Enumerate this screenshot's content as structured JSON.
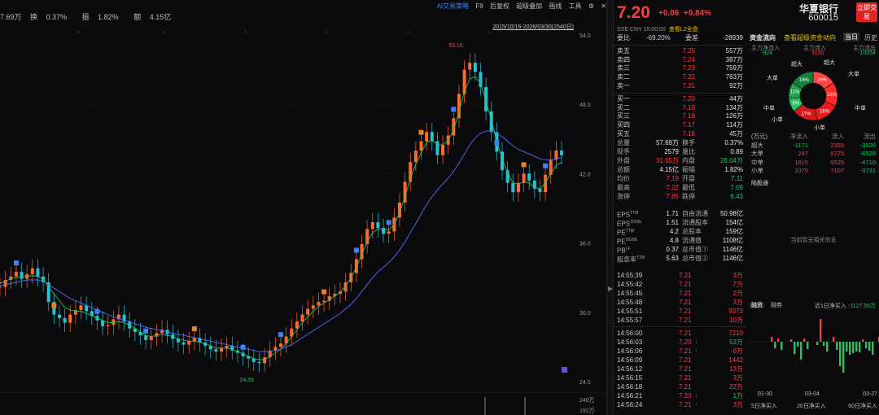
{
  "top": {
    "stats": [
      {
        "label": "7.69万",
        "value": ""
      },
      {
        "label": "换",
        "value": "0.37%"
      },
      {
        "label": "振",
        "value": "1.82%"
      },
      {
        "label": "额",
        "value": "4.15亿"
      }
    ],
    "tools": [
      "AI交易策略",
      "F9",
      "后复权",
      "超级叠加",
      "画线",
      "工具"
    ],
    "date_range": "2015/10/16-2026/03/30(2540日)"
  },
  "chart_data": {
    "type": "line",
    "title": "",
    "ylim": [
      24.0,
      54.0
    ],
    "y_ticks": [
      "54.0",
      "48.0",
      "42.0",
      "36.0",
      "30.0",
      "24.0"
    ],
    "y_ticks_values": [
      54.0,
      48.0,
      42.0,
      36.0,
      30.0,
      24.0
    ],
    "annotations": [
      {
        "label": "53.16",
        "value": 53.16
      },
      {
        "label": "24.35",
        "value": 24.35
      }
    ],
    "close_series": [
      32.2,
      32.8,
      33.1,
      33.5,
      32.9,
      33.3,
      33.8,
      33.1,
      32.6,
      30.9,
      29.8,
      29.5,
      29.1,
      29.8,
      30.2,
      30.6,
      30.1,
      29.7,
      29.3,
      28.8,
      28.9,
      29.4,
      29.8,
      29.2,
      28.6,
      28.3,
      28.0,
      27.6,
      27.9,
      28.2,
      28.5,
      28.1,
      27.7,
      27.4,
      27.2,
      27.5,
      27.8,
      27.4,
      27.1,
      26.8,
      26.6,
      26.9,
      27.1,
      26.7,
      26.5,
      26.2,
      26.0,
      25.7,
      25.6,
      26.1,
      26.7,
      27.0,
      27.3,
      27.9,
      28.6,
      29.2,
      29.8,
      30.3,
      30.6,
      30.9,
      31.0,
      31.4,
      31.6,
      31.8,
      32.6,
      33.4,
      34.6,
      35.9,
      37.2,
      37.8,
      37.3,
      36.8,
      37.0,
      38.2,
      39.5,
      41.3,
      43.0,
      44.0,
      44.8,
      45.6,
      44.8,
      43.6,
      44.5,
      45.3,
      46.8,
      48.9,
      51.0,
      51.6,
      50.8,
      49.5,
      47.4,
      45.6,
      43.9,
      42.3,
      41.2,
      40.4,
      41.2,
      42.0,
      41.4,
      40.7,
      40.4,
      41.9,
      43.2,
      44.0,
      43.6
    ],
    "ma_short": [
      32.5,
      32.7,
      32.9,
      33.0,
      33.1,
      33.1,
      33.2,
      33.1,
      32.9,
      32.2,
      31.6,
      31.0,
      30.4,
      30.2,
      30.1,
      30.1,
      29.9,
      29.7,
      29.5,
      29.3,
      29.1,
      29.1,
      29.2,
      29.1,
      28.9,
      28.6,
      28.3,
      28.0,
      27.9,
      28.0,
      28.1,
      28.0,
      27.9,
      27.7,
      27.6,
      27.5,
      27.5,
      27.4,
      27.3,
      27.1,
      26.9,
      26.9,
      26.9,
      26.8,
      26.6,
      26.4,
      26.2,
      26.0,
      25.9,
      25.9,
      26.2,
      26.5,
      26.8,
      27.3,
      27.9,
      28.5,
      29.1,
      29.6,
      30.1,
      30.5,
      30.8,
      31.1,
      31.4,
      31.7,
      32.3,
      33.0,
      33.9,
      35.0,
      36.1,
      36.9,
      37.2,
      37.2,
      37.1,
      37.6,
      38.6,
      40.0,
      41.6,
      42.8,
      43.8,
      44.7,
      44.9,
      44.5,
      44.5,
      44.9,
      45.8,
      47.3,
      49.1,
      50.2,
      50.4,
      49.8,
      48.3,
      46.6,
      44.8,
      43.3,
      42.1,
      41.2,
      41.1,
      41.3,
      41.2,
      40.8,
      40.7,
      41.2,
      42.0,
      42.7,
      43.0
    ],
    "ma_long": [
      32.3,
      32.4,
      32.5,
      32.6,
      32.7,
      32.8,
      32.8,
      32.8,
      32.7,
      32.4,
      32.1,
      31.8,
      31.5,
      31.2,
      31.0,
      30.8,
      30.6,
      30.4,
      30.2,
      30.0,
      29.8,
      29.6,
      29.5,
      29.3,
      29.2,
      29.0,
      28.9,
      28.7,
      28.6,
      28.5,
      28.4,
      28.3,
      28.2,
      28.1,
      28.0,
      27.9,
      27.8,
      27.7,
      27.6,
      27.5,
      27.4,
      27.3,
      27.2,
      27.1,
      27.0,
      26.9,
      26.8,
      26.7,
      26.6,
      26.6,
      26.6,
      26.7,
      26.8,
      27.0,
      27.2,
      27.5,
      27.8,
      28.1,
      28.4,
      28.7,
      29.0,
      29.3,
      29.6,
      29.9,
      30.3,
      30.7,
      31.2,
      31.8,
      32.4,
      33.0,
      33.5,
      33.9,
      34.3,
      34.8,
      35.4,
      36.1,
      36.9,
      37.7,
      38.5,
      39.3,
      40.0,
      40.6,
      41.1,
      41.6,
      42.2,
      42.9,
      43.7,
      44.5,
      45.1,
      45.5,
      45.7,
      45.7,
      45.5,
      45.2,
      44.8,
      44.4,
      44.1,
      43.9,
      43.7,
      43.5,
      43.3,
      43.2,
      43.2,
      43.3,
      43.4
    ],
    "volume_ticks": [
      "240万",
      "192万"
    ],
    "volume_ticks_values": [
      2400000,
      1920000
    ]
  },
  "quote": {
    "price": "7.20",
    "change": "+0.06",
    "change_pct": "+0.84%",
    "name": "华夏银行",
    "code": "600015",
    "trade_button": "立即交易",
    "sub": "SSE  CNY  15:00:00",
    "l2": "查看L2全盘"
  },
  "book": {
    "ratio": {
      "label": "委比",
      "value": "-69.20%",
      "diff_label": "委差",
      "diff": "-28939"
    },
    "asks": [
      {
        "label": "卖五",
        "price": "7.25",
        "vol": "557万"
      },
      {
        "label": "卖四",
        "price": "7.24",
        "vol": "387万"
      },
      {
        "label": "卖三",
        "price": "7.23",
        "vol": "759万"
      },
      {
        "label": "卖二",
        "price": "7.22",
        "vol": "763万"
      },
      {
        "label": "卖一",
        "price": "7.21",
        "vol": "92万"
      }
    ],
    "bids": [
      {
        "label": "买一",
        "price": "7.20",
        "vol": "44万"
      },
      {
        "label": "买二",
        "price": "7.19",
        "vol": "134万"
      },
      {
        "label": "买三",
        "price": "7.18",
        "vol": "126万"
      },
      {
        "label": "买四",
        "price": "7.17",
        "vol": "114万"
      },
      {
        "label": "买五",
        "price": "7.16",
        "vol": "45万"
      }
    ]
  },
  "stats": [
    {
      "k1": "总量",
      "v1": "57.69万",
      "c1": "white",
      "k2": "换手",
      "v2": "0.37%",
      "c2": "white"
    },
    {
      "k1": "现手",
      "v1": "2579",
      "c1": "white",
      "k2": "量比",
      "v2": "0.89",
      "c2": "white"
    },
    {
      "k1": "外盘",
      "v1": "31.65万",
      "c1": "red",
      "k2": "内盘",
      "v2": "26.04万",
      "c2": "green"
    },
    {
      "k1": "总额",
      "v1": "4.15亿",
      "c1": "white",
      "k2": "振幅",
      "v2": "1.82%",
      "c2": "white"
    },
    {
      "k1": "均价",
      "v1": "7.19",
      "c1": "red",
      "k2": "开盘",
      "v2": "7.11",
      "c2": "green"
    },
    {
      "k1": "最高",
      "v1": "7.22",
      "c1": "red",
      "k2": "最低",
      "v2": "7.09",
      "c2": "green"
    },
    {
      "k1": "涨停",
      "v1": "7.85",
      "c1": "red",
      "k2": "跌停",
      "v2": "6.43",
      "c2": "green"
    }
  ],
  "fin": [
    {
      "k1": "EPS",
      "s1": "TTM",
      "v1": "1.71",
      "k2": "自由流通",
      "v2": "50.98亿"
    },
    {
      "k1": "EPS",
      "s1": "2026E",
      "v1": "1.51",
      "k2": "流通股本",
      "v2": "154亿"
    },
    {
      "k1": "PE",
      "s1": "TTM",
      "v1": "4.2",
      "k2": "总股本",
      "v2": "159亿"
    },
    {
      "k1": "PE",
      "s1": "2026E",
      "v1": "4.8",
      "k2": "流通值",
      "v2": "1108亿"
    },
    {
      "k1": "PB",
      "s1": "LF",
      "v1": "0.37",
      "k2": "总市值①",
      "v2": "1146亿"
    },
    {
      "k1": "股息率",
      "s1": "TTM",
      "v1": "5.63",
      "k2": "总市值②",
      "v2": "1146亿"
    }
  ],
  "ticks": [
    {
      "t": "14:55:39",
      "p": "7.21",
      "a": "",
      "v": "3万",
      "vc": "red"
    },
    {
      "t": "14:55:42",
      "p": "7.21",
      "a": "",
      "v": "7万",
      "vc": "red"
    },
    {
      "t": "14:55:45",
      "p": "7.21",
      "a": "",
      "v": "2万",
      "vc": "red"
    },
    {
      "t": "14:55:48",
      "p": "7.21",
      "a": "",
      "v": "3万",
      "vc": "red"
    },
    {
      "t": "14:55:51",
      "p": "7.21",
      "a": "",
      "v": "9373",
      "vc": "red"
    },
    {
      "t": "14:55:57",
      "p": "7.21",
      "a": "",
      "v": "10万",
      "vc": "red"
    },
    {
      "t": "14:56:00",
      "p": "7.21",
      "a": "",
      "v": "7210",
      "vc": "red"
    },
    {
      "t": "14:56:03",
      "p": "7.20",
      "a": "↓",
      "v": "53万",
      "vc": "green"
    },
    {
      "t": "14:56:06",
      "p": "7.21",
      "a": "↑",
      "v": "6万",
      "vc": "red"
    },
    {
      "t": "14:56:09",
      "p": "7.21",
      "a": "",
      "v": "1442",
      "vc": "red"
    },
    {
      "t": "14:56:12",
      "p": "7.21",
      "a": "",
      "v": "13万",
      "vc": "red"
    },
    {
      "t": "14:56:15",
      "p": "7.21",
      "a": "",
      "v": "3万",
      "vc": "red"
    },
    {
      "t": "14:56:18",
      "p": "7.21",
      "a": "",
      "v": "22万",
      "vc": "red"
    },
    {
      "t": "14:56:21",
      "p": "7.20",
      "a": "↓",
      "v": "1万",
      "vc": "green"
    },
    {
      "t": "14:56:24",
      "p": "7.21",
      "a": "↑",
      "v": "3万",
      "vc": "red"
    }
  ],
  "flow": {
    "title": "资金流向",
    "super_link": "查看超级资金动向",
    "tab_today": "当日",
    "tab_history": "历史",
    "main_net_label": "主力净流入",
    "main_net": "-924",
    "main_in_label": "主力流入",
    "main_in": "9130",
    "main_out_label": "主力流出",
    "main_out": "-10054",
    "donut_labels": {
      "super": "超大",
      "large": "大单",
      "mid": "中单",
      "small": "小单"
    },
    "donut_pcts": [
      "16%",
      "16%",
      "16%",
      "17%",
      "9%",
      "11%",
      "16%"
    ],
    "donut_values": [
      16,
      16,
      16,
      17,
      9,
      11,
      16
    ],
    "table_headers": [
      "(万元)",
      "净流入",
      "流入",
      "流出"
    ],
    "rows": [
      {
        "k": "超大",
        "n": "-1171",
        "nc": "green",
        "i": "2355",
        "o": "-3526"
      },
      {
        "k": "大单",
        "n": "247",
        "nc": "red",
        "i": "6775",
        "o": "-6528"
      },
      {
        "k": "中单",
        "n": "1815",
        "nc": "red",
        "i": "6525",
        "o": "-4710"
      },
      {
        "k": "小单",
        "n": "3375",
        "nc": "red",
        "i": "7107",
        "o": "-3731"
      }
    ]
  },
  "lt": {
    "header": "陆股通",
    "empty": "当前暂无相关信息"
  },
  "margin": {
    "tab1": "融资",
    "tab2": "融券",
    "net_label": "近1日净买入",
    "net_value": "-1127.56万",
    "dates": [
      "01-30",
      "03-04",
      "03-27"
    ],
    "bars": [
      0,
      0,
      6,
      -8,
      4,
      -10,
      0,
      0,
      3,
      -15,
      -6,
      -22,
      4,
      -9,
      0,
      0,
      -4,
      28,
      -5,
      -12,
      0,
      6,
      -10,
      -30,
      -38,
      -12,
      -16,
      -14,
      -12,
      -13,
      3,
      -8,
      -11,
      -16,
      0,
      6,
      -14,
      -18
    ],
    "tabs2": [
      "5日净买入",
      "20日净买入",
      "60日净买入"
    ]
  }
}
